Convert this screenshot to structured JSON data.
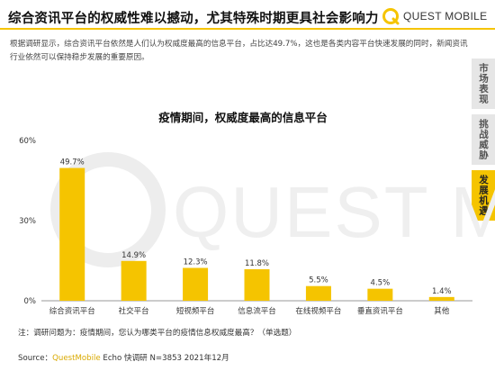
{
  "header": {
    "title": "综合资讯平台的权威性难以撼动，尤其特殊时期更具社会影响力",
    "logo_text": "QUEST MOBILE"
  },
  "intro_text": "根据调研显示，综合资讯平台依然是人们认为权威度最高的信息平台，占比达49.7%，这也是各类内容平台快速发展的同时，新闻资讯行业依然可以保持稳步发展的重要原因。",
  "side_tabs": [
    {
      "label": "市场表现",
      "active": false
    },
    {
      "label": "挑战威胁",
      "active": false
    },
    {
      "label": "发展机遇",
      "active": true
    }
  ],
  "watermark": "QUEST MOBILE",
  "chart_data": {
    "type": "bar",
    "title": "疫情期间，权威度最高的信息平台",
    "categories": [
      "综合资讯平台",
      "社交平台",
      "短视频平台",
      "信息流平台",
      "在线视频平台",
      "垂直资讯平台",
      "其他"
    ],
    "values": [
      49.7,
      14.9,
      12.3,
      11.8,
      5.5,
      4.5,
      1.4
    ],
    "value_labels": [
      "49.7%",
      "14.9%",
      "12.3%",
      "11.8%",
      "5.5%",
      "4.5%",
      "1.4%"
    ],
    "ylim": [
      0,
      60
    ],
    "yticks": [
      0,
      30,
      60
    ],
    "ytick_labels": [
      "0%",
      "30%",
      "60%"
    ],
    "xlabel": "",
    "ylabel": "",
    "grid": false,
    "bar_color": "#f5c400"
  },
  "note": "注：调研问题为：疫情期间，您认为哪类平台的疫情信息权威度最高？（单选题）",
  "source": {
    "prefix": "Source：",
    "brand": "QuestMobile",
    "rest": " Echo 快调研 N=3853 2021年12月"
  }
}
